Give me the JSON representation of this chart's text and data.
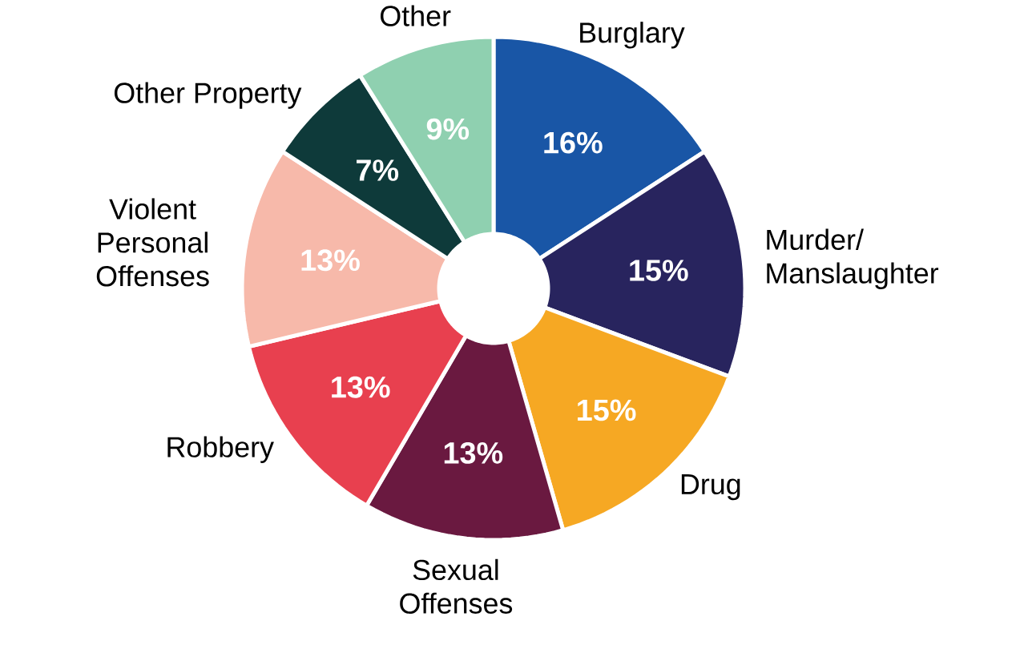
{
  "chart_data": {
    "type": "donut",
    "categories": [
      "Burglary",
      "Murder/ Manslaughter",
      "Drug",
      "Sexual Offenses",
      "Robbery",
      "Violent Personal Offenses",
      "Other Property",
      "Other"
    ],
    "values": [
      16,
      15,
      15,
      13,
      13,
      13,
      7,
      9
    ],
    "value_labels": [
      "16%",
      "15%",
      "15%",
      "13%",
      "13%",
      "13%",
      "7%",
      "9%"
    ],
    "colors": [
      "#1956a6",
      "#28245e",
      "#f6a823",
      "#6a1940",
      "#e8404f",
      "#f7b9aa",
      "#0e3a3a",
      "#8fd0b0"
    ]
  }
}
